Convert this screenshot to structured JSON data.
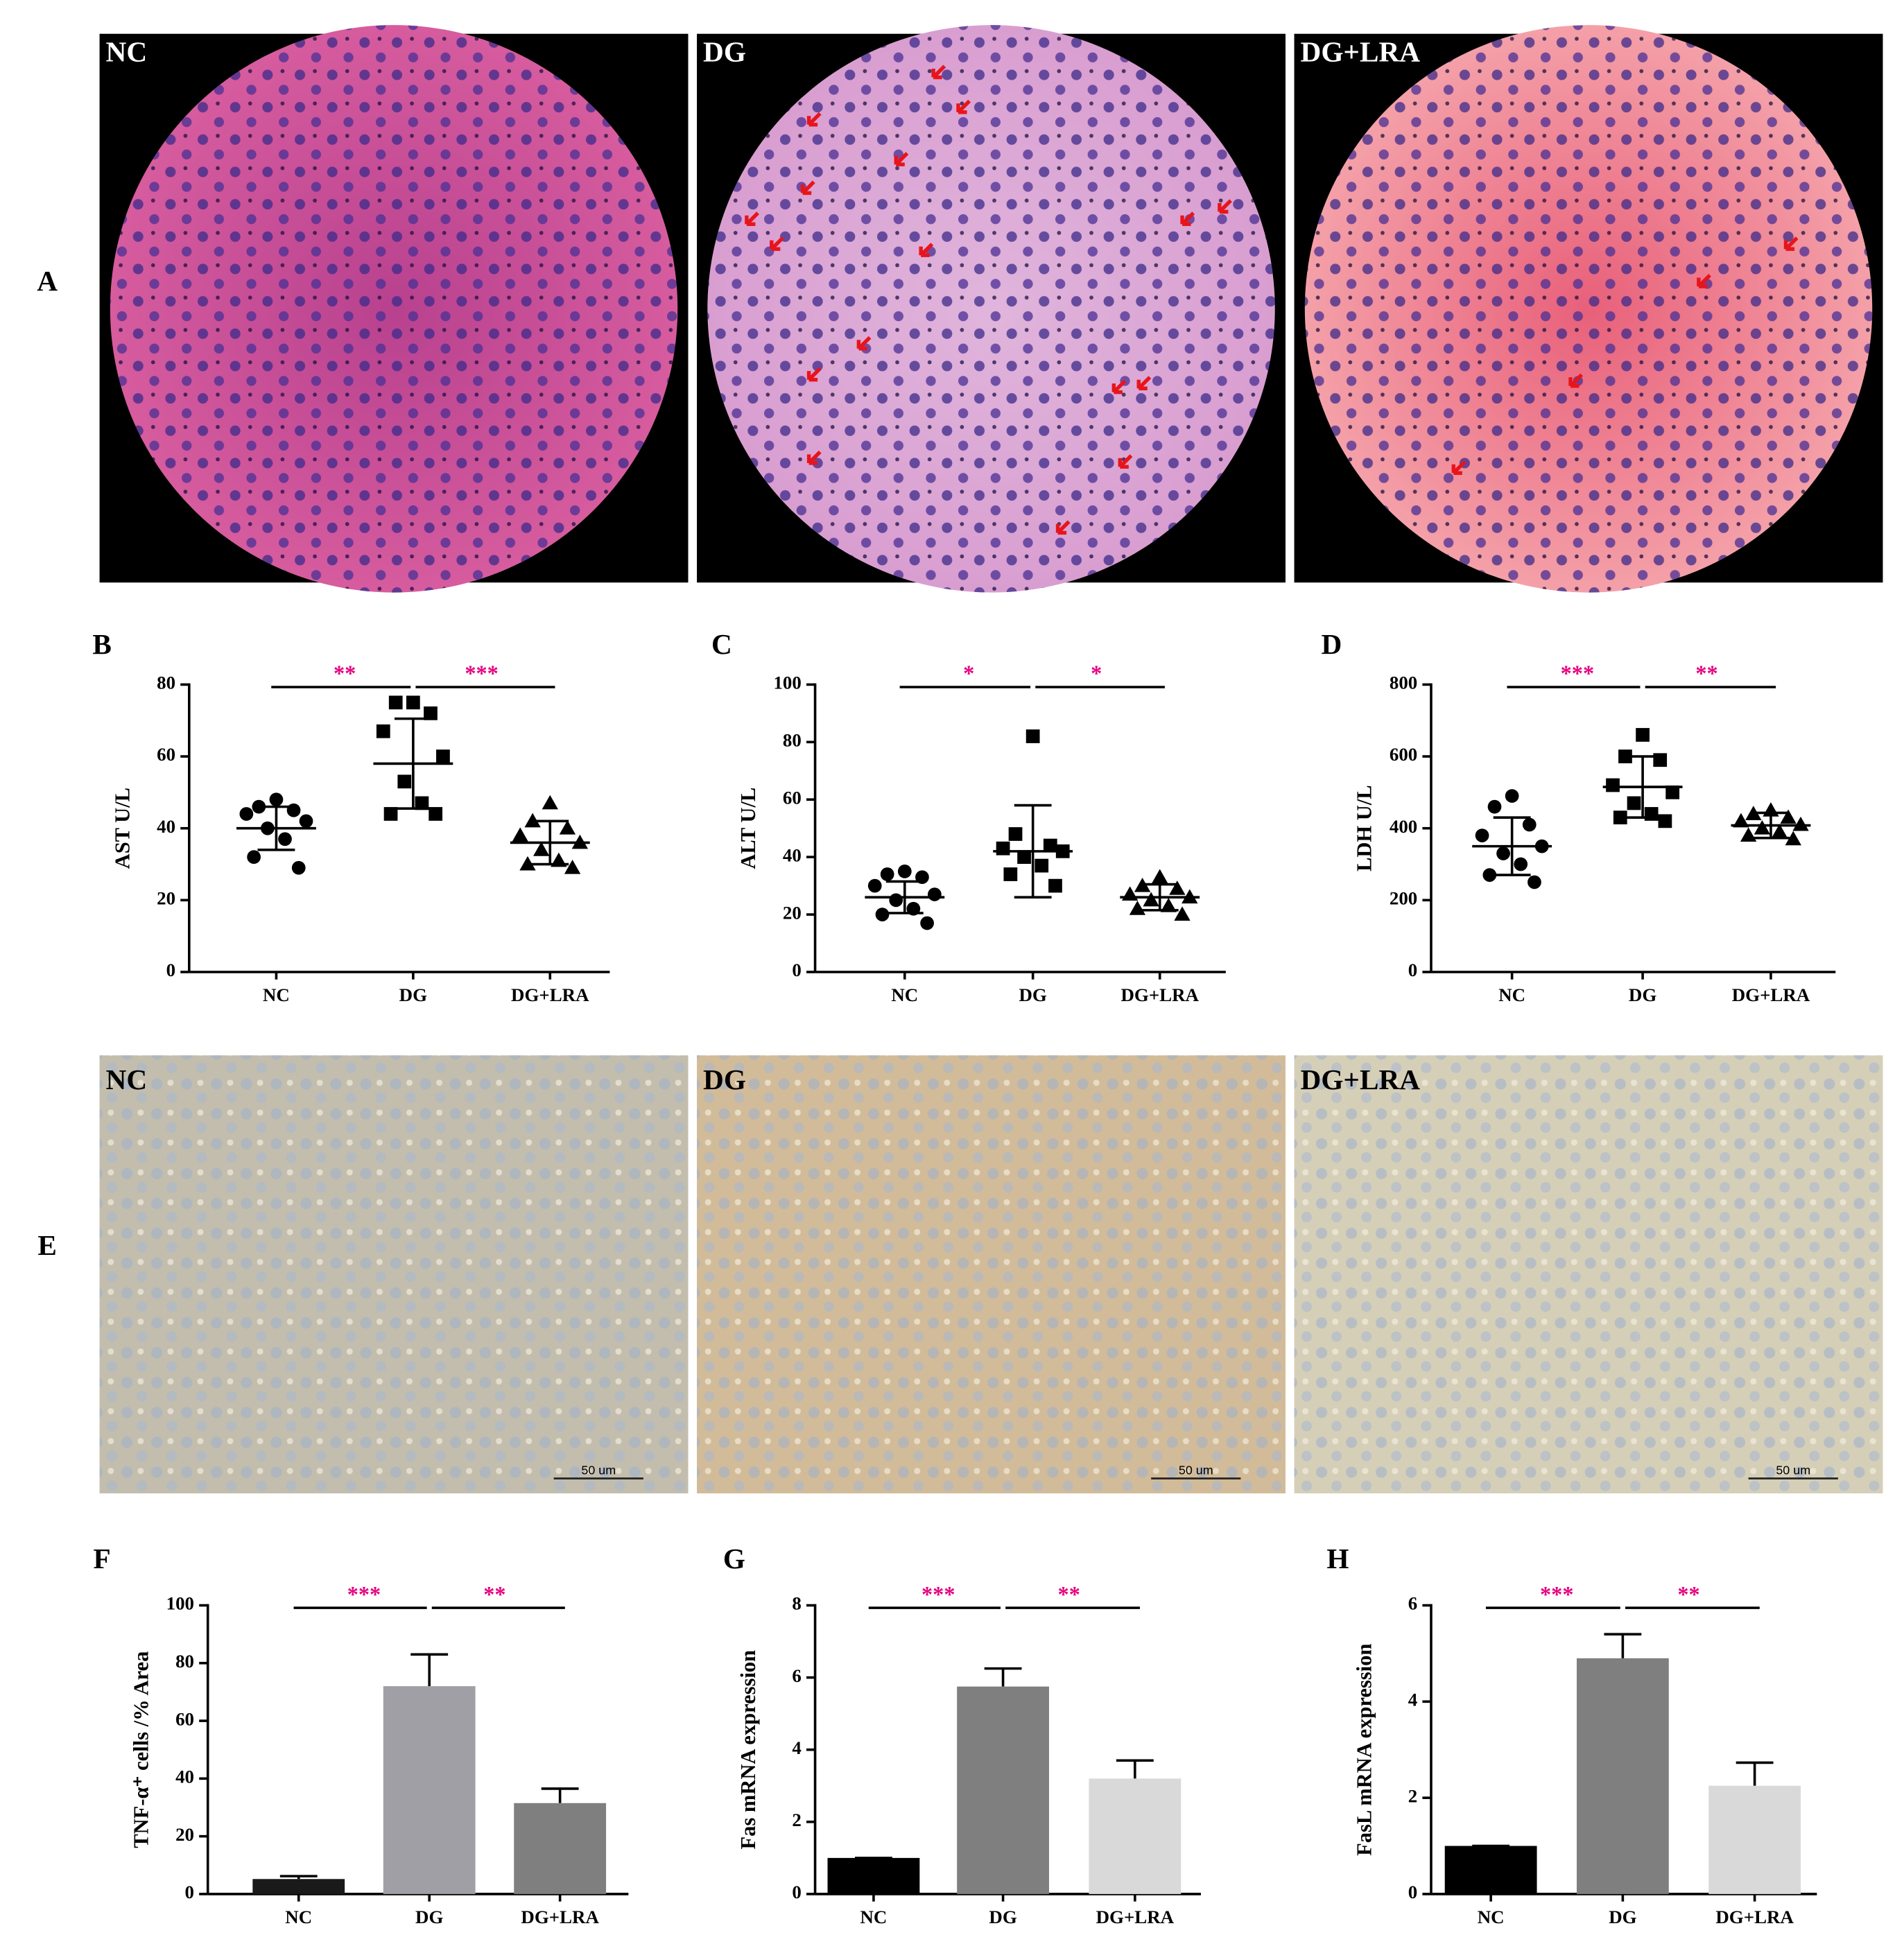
{
  "histology": [
    {
      "panel": "A",
      "labels": [
        "NC",
        "DG",
        "DG+LRA"
      ]
    },
    {
      "panel": "E",
      "labels": [
        "NC",
        "DG",
        "DG+LRA"
      ],
      "scale_bar": "50 um"
    }
  ],
  "significance_color": "#e6007e",
  "chart_data": [
    {
      "type": "scatter",
      "panel": "B",
      "y_label": "AST U/L",
      "categories": [
        "NC",
        "DG",
        "DG+LRA"
      ],
      "points": [
        [
          48,
          46,
          45,
          44,
          42,
          40,
          37,
          32,
          29
        ],
        [
          75,
          75,
          72,
          67,
          60,
          53,
          47,
          44,
          44
        ],
        [
          47,
          42,
          40,
          38,
          36,
          34,
          31,
          30,
          29
        ]
      ],
      "means": [
        40,
        58,
        36
      ],
      "sd": [
        6,
        12.5,
        6
      ],
      "ylim": [
        0,
        80
      ],
      "yticks": [
        0,
        20,
        40,
        60,
        80
      ],
      "significance": [
        {
          "pair": [
            "NC",
            "DG"
          ],
          "label": "**"
        },
        {
          "pair": [
            "DG",
            "DG+LRA"
          ],
          "label": "***"
        }
      ]
    },
    {
      "type": "scatter",
      "panel": "C",
      "y_label": "ALT U/L",
      "categories": [
        "NC",
        "DG",
        "DG+LRA"
      ],
      "points": [
        [
          35,
          34,
          33,
          30,
          27,
          25,
          22,
          20,
          17
        ],
        [
          82,
          48,
          44,
          43,
          42,
          40,
          37,
          34,
          30
        ],
        [
          33,
          30,
          29,
          27,
          26,
          25,
          23,
          22,
          20
        ]
      ],
      "means": [
        26,
        42,
        26
      ],
      "sd": [
        5.5,
        16,
        4.5
      ],
      "ylim": [
        0,
        100
      ],
      "yticks": [
        0,
        20,
        40,
        60,
        80,
        100
      ],
      "significance": [
        {
          "pair": [
            "NC",
            "DG"
          ],
          "label": "*"
        },
        {
          "pair": [
            "DG",
            "DG+LRA"
          ],
          "label": "*"
        }
      ]
    },
    {
      "type": "scatter",
      "panel": "D",
      "y_label": "LDH U/L",
      "categories": [
        "NC",
        "DG",
        "DG+LRA"
      ],
      "points": [
        [
          490,
          460,
          410,
          380,
          350,
          330,
          300,
          270,
          250
        ],
        [
          660,
          600,
          590,
          520,
          500,
          470,
          440,
          430,
          420
        ],
        [
          450,
          440,
          430,
          420,
          410,
          400,
          390,
          380,
          370
        ]
      ],
      "means": [
        350,
        515,
        408
      ],
      "sd": [
        80,
        85,
        35
      ],
      "ylim": [
        0,
        800
      ],
      "yticks": [
        0,
        200,
        400,
        600,
        800
      ],
      "significance": [
        {
          "pair": [
            "NC",
            "DG"
          ],
          "label": "***"
        },
        {
          "pair": [
            "DG",
            "DG+LRA"
          ],
          "label": "**"
        }
      ]
    },
    {
      "type": "bar",
      "panel": "F",
      "y_label": "TNF-α⁺ cells /% Area",
      "categories": [
        "NC",
        "DG",
        "DG+LRA"
      ],
      "values": [
        5.2,
        72,
        31.5
      ],
      "errors": [
        1,
        11,
        5
      ],
      "colors": [
        "#1a1a1a",
        "#a19fa6",
        "#7f7f7f"
      ],
      "ylim": [
        0,
        100
      ],
      "yticks": [
        0,
        20,
        40,
        60,
        80,
        100
      ],
      "significance": [
        {
          "pair": [
            "NC",
            "DG"
          ],
          "label": "***"
        },
        {
          "pair": [
            "DG",
            "DG+LRA"
          ],
          "label": "**"
        }
      ]
    },
    {
      "type": "bar",
      "panel": "G",
      "y_label": "Fas mRNA expression",
      "categories": [
        "NC",
        "DG",
        "DG+LRA"
      ],
      "values": [
        1.0,
        5.75,
        3.2
      ],
      "errors": [
        0,
        0.5,
        0.5
      ],
      "colors": [
        "#000000",
        "#7f7f7f",
        "#d9d9d9"
      ],
      "ylim": [
        0,
        8
      ],
      "yticks": [
        0,
        2,
        4,
        6,
        8
      ],
      "significance": [
        {
          "pair": [
            "NC",
            "DG"
          ],
          "label": "***"
        },
        {
          "pair": [
            "DG",
            "DG+LRA"
          ],
          "label": "**"
        }
      ]
    },
    {
      "type": "bar",
      "panel": "H",
      "y_label": "FasL mRNA expression",
      "categories": [
        "NC",
        "DG",
        "DG+LRA"
      ],
      "values": [
        1.0,
        4.9,
        2.25
      ],
      "errors": [
        0,
        0.5,
        0.48
      ],
      "colors": [
        "#000000",
        "#7f7f7f",
        "#d9d9d9"
      ],
      "ylim": [
        0,
        6
      ],
      "yticks": [
        0,
        2,
        4,
        6
      ],
      "significance": [
        {
          "pair": [
            "NC",
            "DG"
          ],
          "label": "***"
        },
        {
          "pair": [
            "DG",
            "DG+LRA"
          ],
          "label": "**"
        }
      ]
    }
  ]
}
